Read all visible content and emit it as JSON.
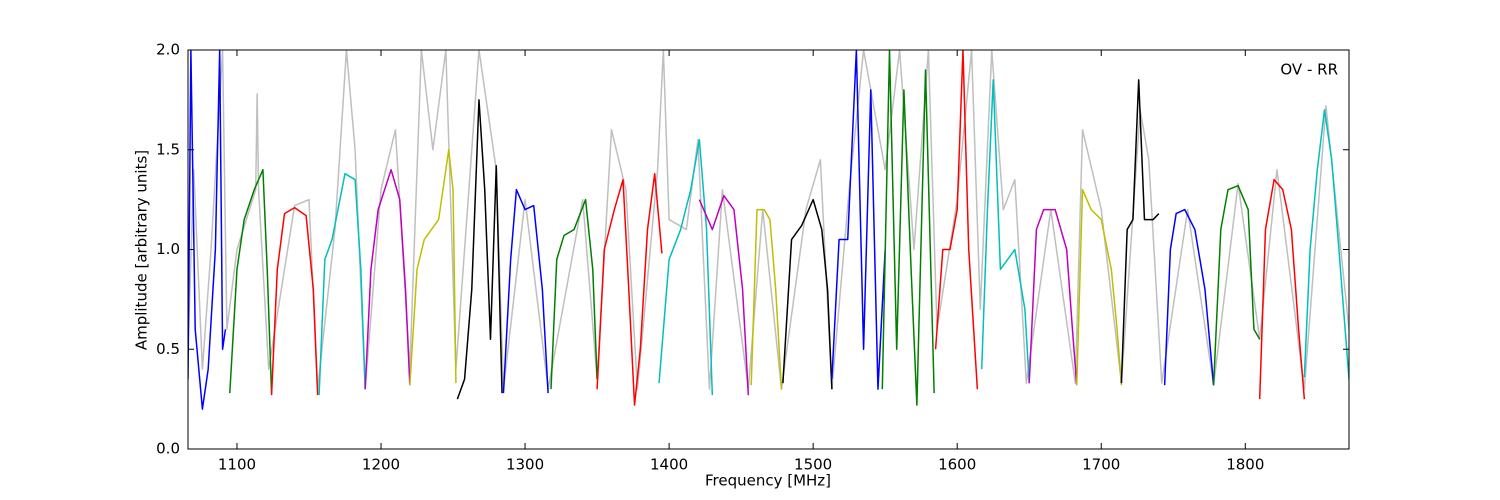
{
  "chart_data": {
    "type": "line",
    "xlabel": "Frequency [MHz]",
    "ylabel": "Amplitude [arbitrary units]",
    "annotation": "OV - RR",
    "xlim": [
      1066,
      1872
    ],
    "ylim": [
      0,
      2
    ],
    "xticks": [
      1100,
      1200,
      1300,
      1400,
      1500,
      1600,
      1700,
      1800
    ],
    "yticks": [
      {
        "value": 0,
        "label": "0.0"
      },
      {
        "value": 0.5,
        "label": "0.5"
      },
      {
        "value": 1,
        "label": "1.0"
      },
      {
        "value": 1.5,
        "label": "1.5"
      },
      {
        "value": 2,
        "label": "2.0"
      }
    ],
    "grid": false,
    "series": [
      {
        "color": "#bfbfbf",
        "x": [
          1066,
          1070,
          1076,
          1082,
          1090,
          1093,
          1100,
          1113,
          1114,
          1115,
          1122,
          1140,
          1150,
          1156,
          1168,
          1176,
          1182,
          1189,
          1200,
          1210,
          1220,
          1228,
          1236,
          1245,
          1252,
          1260,
          1268,
          1280,
          1285,
          1300,
          1316,
          1340,
          1350,
          1360,
          1370,
          1378,
          1392,
          1396,
          1400,
          1412,
          1420,
          1428,
          1437,
          1455,
          1465,
          1478,
          1495,
          1505,
          1513,
          1525,
          1535,
          1550,
          1560,
          1570,
          1580,
          1586,
          1600,
          1610,
          1616,
          1624,
          1632,
          1640,
          1648,
          1665,
          1682,
          1687,
          1700,
          1714,
          1727,
          1733,
          1742,
          1760,
          1778,
          1795,
          1810,
          1822,
          1841,
          1856,
          1872
        ],
        "values": [
          0.5,
          1.4,
          0.4,
          1.0,
          2.0,
          0.6,
          1.0,
          1.3,
          1.78,
          1.3,
          0.4,
          1.22,
          1.25,
          0.3,
          1.1,
          2.0,
          1.5,
          0.3,
          1.3,
          1.6,
          0.4,
          2.0,
          1.5,
          2.0,
          0.4,
          1.2,
          2.0,
          1.4,
          0.3,
          1.25,
          0.3,
          1.25,
          0.35,
          1.6,
          1.3,
          0.3,
          1.4,
          2.0,
          1.15,
          1.1,
          1.55,
          0.3,
          1.3,
          0.3,
          1.2,
          0.3,
          1.2,
          1.45,
          0.3,
          1.3,
          2.0,
          1.4,
          2.0,
          1.0,
          2.0,
          0.6,
          1.25,
          2.0,
          0.7,
          2.0,
          1.2,
          1.35,
          0.33,
          1.2,
          0.33,
          1.6,
          1.2,
          0.33,
          1.7,
          1.45,
          0.33,
          1.2,
          0.32,
          1.33,
          0.55,
          1.4,
          0.3,
          1.72,
          0.6
        ]
      },
      {
        "color": "#0000ff",
        "x": [
          1066,
          1068,
          1071,
          1076,
          1080,
          1085,
          1088,
          1090,
          1092
        ],
        "values": [
          0.35,
          2.0,
          0.6,
          0.2,
          0.4,
          1.0,
          2.0,
          0.5,
          0.6
        ]
      },
      {
        "color": "#008000",
        "x": [
          1095,
          1100,
          1105,
          1112,
          1118,
          1121,
          1124
        ],
        "values": [
          0.28,
          0.9,
          1.15,
          1.3,
          1.4,
          0.9,
          0.28
        ]
      },
      {
        "color": "#ff0000",
        "x": [
          1124,
          1128,
          1133,
          1140,
          1148,
          1153,
          1156
        ],
        "values": [
          0.27,
          0.9,
          1.18,
          1.21,
          1.17,
          0.8,
          0.27
        ]
      },
      {
        "color": "#00bfbf",
        "x": [
          1157,
          1161,
          1166,
          1175,
          1182,
          1186,
          1189
        ],
        "values": [
          0.27,
          0.95,
          1.05,
          1.38,
          1.35,
          0.9,
          0.3
        ]
      },
      {
        "color": "#bf00bf",
        "x": [
          1189,
          1193,
          1198,
          1207,
          1213,
          1217,
          1220
        ],
        "values": [
          0.3,
          0.9,
          1.2,
          1.4,
          1.25,
          0.8,
          0.32
        ]
      },
      {
        "color": "#bfbf00",
        "x": [
          1220,
          1225,
          1230,
          1240,
          1247,
          1250,
          1252
        ],
        "values": [
          0.32,
          0.9,
          1.05,
          1.15,
          1.5,
          1.3,
          0.33
        ]
      },
      {
        "color": "#000000",
        "x": [
          1253,
          1258,
          1263,
          1268,
          1272,
          1276,
          1280,
          1284
        ],
        "values": [
          0.25,
          0.35,
          0.8,
          1.75,
          1.3,
          0.55,
          1.42,
          0.28
        ]
      },
      {
        "color": "#0000ff",
        "x": [
          1285,
          1290,
          1294,
          1300,
          1306,
          1312,
          1316
        ],
        "values": [
          0.28,
          0.95,
          1.3,
          1.2,
          1.22,
          0.8,
          0.28
        ]
      },
      {
        "color": "#008000",
        "x": [
          1318,
          1322,
          1327,
          1334,
          1342,
          1347,
          1350
        ],
        "values": [
          0.3,
          0.95,
          1.07,
          1.1,
          1.25,
          0.9,
          0.35
        ]
      },
      {
        "color": "#ff0000",
        "x": [
          1350,
          1355,
          1362,
          1368,
          1372,
          1376,
          1380,
          1385,
          1390,
          1395
        ],
        "values": [
          0.3,
          1.0,
          1.2,
          1.35,
          0.8,
          0.22,
          0.5,
          1.1,
          1.38,
          0.98
        ]
      },
      {
        "color": "#00bfbf",
        "x": [
          1393,
          1400,
          1408,
          1415,
          1421,
          1426,
          1430
        ],
        "values": [
          0.33,
          0.95,
          1.1,
          1.3,
          1.55,
          1.1,
          0.27
        ]
      },
      {
        "color": "#bf00bf",
        "x": [
          1421,
          1424,
          1430,
          1438,
          1445,
          1451,
          1455
        ],
        "values": [
          1.25,
          1.2,
          1.1,
          1.27,
          1.2,
          0.8,
          0.27
        ]
      },
      {
        "color": "#bfbf00",
        "x": [
          1457,
          1461,
          1466,
          1470,
          1474,
          1478
        ],
        "values": [
          0.32,
          1.2,
          1.2,
          1.15,
          0.8,
          0.3
        ]
      },
      {
        "color": "#000000",
        "x": [
          1479,
          1485,
          1492,
          1500,
          1506,
          1510,
          1513
        ],
        "values": [
          0.33,
          1.05,
          1.12,
          1.25,
          1.1,
          0.8,
          0.3
        ]
      },
      {
        "color": "#0000ff",
        "x": [
          1513,
          1518,
          1524,
          1530,
          1535,
          1540,
          1545,
          1550
        ],
        "values": [
          0.35,
          1.05,
          1.05,
          2.0,
          0.5,
          1.8,
          0.3,
          1.0
        ]
      },
      {
        "color": "#008000",
        "x": [
          1548,
          1553,
          1558,
          1563,
          1568,
          1572,
          1578,
          1584
        ],
        "values": [
          0.3,
          2.0,
          0.5,
          1.8,
          0.9,
          0.22,
          1.9,
          0.28
        ]
      },
      {
        "color": "#ff0000",
        "x": [
          1585,
          1590,
          1595,
          1600,
          1604,
          1608,
          1614
        ],
        "values": [
          0.5,
          1.0,
          1.0,
          1.2,
          2.0,
          1.0,
          0.3
        ]
      },
      {
        "color": "#00bfbf",
        "x": [
          1617,
          1621,
          1625,
          1630,
          1640,
          1647,
          1650
        ],
        "values": [
          0.4,
          1.2,
          1.85,
          0.9,
          1.0,
          0.7,
          0.33
        ]
      },
      {
        "color": "#bf00bf",
        "x": [
          1650,
          1655,
          1660,
          1668,
          1676,
          1680,
          1683
        ],
        "values": [
          0.33,
          1.1,
          1.2,
          1.2,
          1.0,
          0.6,
          0.32
        ]
      },
      {
        "color": "#bfbf00",
        "x": [
          1683,
          1687,
          1693,
          1700,
          1707,
          1711,
          1714
        ],
        "values": [
          0.32,
          1.3,
          1.2,
          1.15,
          0.9,
          0.6,
          0.32
        ]
      },
      {
        "color": "#000000",
        "x": [
          1714,
          1718,
          1722,
          1726,
          1730,
          1736,
          1740
        ],
        "values": [
          0.33,
          1.1,
          1.15,
          1.85,
          1.15,
          1.15,
          1.18
        ]
      },
      {
        "color": "#0000ff",
        "x": [
          1744,
          1748,
          1752,
          1758,
          1765,
          1772,
          1778
        ],
        "values": [
          0.32,
          1.0,
          1.18,
          1.2,
          1.1,
          0.8,
          0.32
        ]
      },
      {
        "color": "#008000",
        "x": [
          1778,
          1783,
          1788,
          1795,
          1802,
          1806,
          1810
        ],
        "values": [
          0.32,
          1.1,
          1.3,
          1.32,
          1.2,
          0.6,
          0.55
        ]
      },
      {
        "color": "#ff0000",
        "x": [
          1810,
          1814,
          1820,
          1826,
          1832,
          1837,
          1841
        ],
        "values": [
          0.25,
          1.1,
          1.35,
          1.3,
          1.1,
          0.6,
          0.25
        ]
      },
      {
        "color": "#00bfbf",
        "x": [
          1841,
          1845,
          1850,
          1855,
          1860,
          1865,
          1872
        ],
        "values": [
          0.36,
          1.0,
          1.4,
          1.7,
          1.45,
          1.0,
          0.35
        ]
      }
    ]
  }
}
